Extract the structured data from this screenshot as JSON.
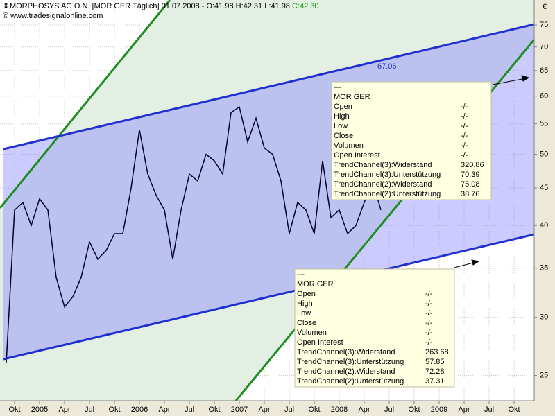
{
  "header": {
    "title": "MORPHOSYS AG O.N. [MOR GER  Täglich] 01.07.2008 - O:41.98 H:42.31 L:41.98",
    "close": "C:42.30",
    "copyright": "© www.tradesignalonline.com"
  },
  "chart_data": {
    "type": "line",
    "categories": [
      null,
      "Okt",
      null,
      null,
      "2005",
      null,
      null,
      "Apr",
      null,
      null,
      "Jul",
      null,
      null,
      "Okt",
      null,
      null,
      "2006",
      null,
      null,
      "Apr",
      null,
      null,
      "Jul",
      null,
      null,
      "Okt",
      null,
      null,
      "2007",
      null,
      null,
      "Apr",
      null,
      null,
      "Jul",
      null,
      null,
      "Okt",
      null,
      null,
      "2008",
      null,
      null,
      "Apr",
      null,
      null,
      "Jul",
      null,
      null,
      "Okt",
      null,
      null,
      "2009",
      null,
      null,
      "Apr",
      null,
      null,
      "Jul",
      null,
      null,
      "Okt",
      null,
      null
    ],
    "series": [
      {
        "color": "#000028",
        "values": [
          26,
          42,
          43,
          40,
          43.5,
          42,
          34,
          31,
          32,
          34,
          38,
          36,
          37,
          39,
          39,
          45,
          54,
          47,
          44,
          42,
          36,
          42,
          47,
          46,
          50,
          49,
          47,
          57,
          58,
          52,
          56,
          51,
          50,
          46,
          39,
          43,
          42,
          39,
          49,
          41,
          42,
          39,
          40,
          43,
          46,
          42,
          null,
          null,
          null,
          null,
          null,
          null,
          null,
          null,
          null,
          null,
          null,
          null,
          null,
          null,
          null,
          null,
          null,
          null
        ]
      }
    ],
    "ylim": [
      23.1,
      81.1
    ],
    "yticks": [
      25,
      30,
      35,
      40,
      45,
      50,
      55,
      60,
      65,
      70,
      75
    ],
    "log_scale": true,
    "grid": true,
    "y_unit": "€",
    "channel_label": "67.06"
  },
  "tooltips": [
    {
      "rows": [
        [
          "---"
        ],
        [
          "MOR GER"
        ],
        [
          "Open",
          "-/-"
        ],
        [
          "High",
          "-/-"
        ],
        [
          "Low",
          "-/-"
        ],
        [
          "Close",
          "-/-"
        ],
        [
          "Volumen",
          "-/-"
        ],
        [
          "Open Interest",
          "-/-"
        ],
        [
          "TrendChannel(3):Widerstand",
          "320.86"
        ],
        [
          "TrendChannel(3):Unterstützung",
          "70.39"
        ],
        [
          "TrendChannel(2):Widerstand",
          "75.08"
        ],
        [
          "TrendChannel(2):Unterstützung",
          "38.76"
        ]
      ]
    },
    {
      "rows": [
        [
          "---"
        ],
        [
          "MOR GER"
        ],
        [
          "Open",
          "-/-"
        ],
        [
          "High",
          "-/-"
        ],
        [
          "Low",
          "-/-"
        ],
        [
          "Close",
          "-/-"
        ],
        [
          "Volumen",
          "-/-"
        ],
        [
          "Open Interest",
          "-/-"
        ],
        [
          "TrendChannel(3):Widerstand",
          "263.68"
        ],
        [
          "TrendChannel(3):Unterstützung",
          "57.85"
        ],
        [
          "TrendChannel(2):Widerstand",
          "72.28"
        ],
        [
          "TrendChannel(2):Unterstützung",
          "37.31"
        ]
      ]
    }
  ]
}
